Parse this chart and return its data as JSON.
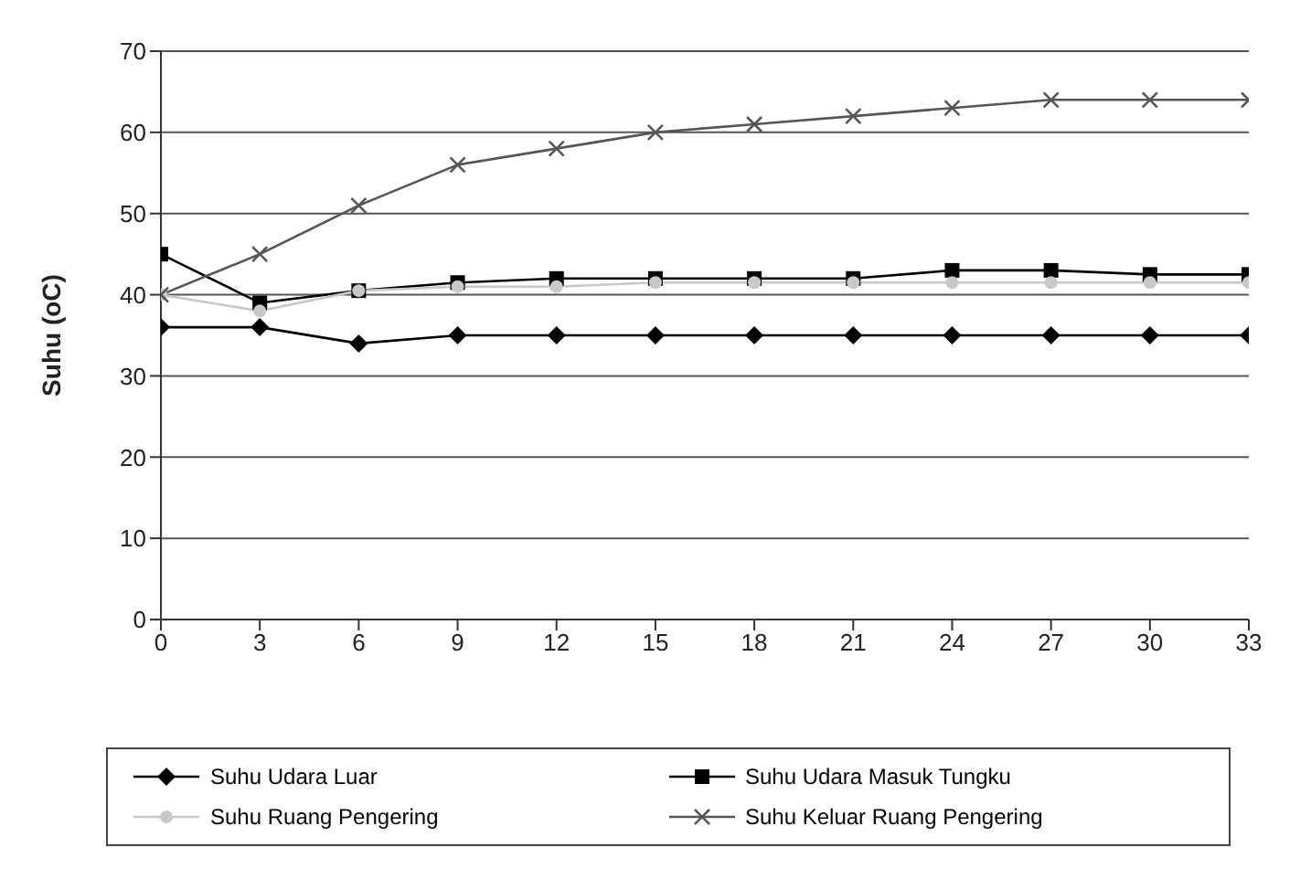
{
  "chart_data": {
    "type": "line",
    "ylabel": "Suhu (oC)",
    "x": [
      0,
      3,
      6,
      9,
      12,
      15,
      18,
      21,
      24,
      27,
      30,
      33
    ],
    "xlim": [
      0,
      33
    ],
    "xticks": [
      0,
      3,
      6,
      9,
      12,
      15,
      18,
      21,
      24,
      27,
      30,
      33
    ],
    "ylim": [
      0,
      70
    ],
    "yticks": [
      0,
      10,
      20,
      30,
      40,
      50,
      60,
      70
    ],
    "grid": "y",
    "legend": "bottom",
    "series": [
      {
        "name": "Suhu Udara Luar",
        "color": "#000000",
        "marker": "diamond",
        "values": [
          36,
          36,
          34,
          35,
          35,
          35,
          35,
          35,
          35,
          35,
          35,
          35
        ]
      },
      {
        "name": "Suhu Udara Masuk Tungku",
        "color": "#000000",
        "marker": "square",
        "values": [
          45,
          39,
          40.5,
          41.5,
          42,
          42,
          42,
          42,
          43,
          43,
          42.5,
          42.5
        ]
      },
      {
        "name": "Suhu Ruang Pengering",
        "color": "#c8c8c8",
        "marker": "circle",
        "values": [
          40,
          38,
          40.5,
          41,
          41,
          41.5,
          41.5,
          41.5,
          41.5,
          41.5,
          41.5,
          41.5
        ]
      },
      {
        "name": "Suhu Keluar Ruang Pengering",
        "color": "#555555",
        "marker": "cross",
        "values": [
          40,
          45,
          51,
          56,
          58,
          60,
          61,
          62,
          63,
          64,
          64,
          64
        ]
      }
    ]
  }
}
